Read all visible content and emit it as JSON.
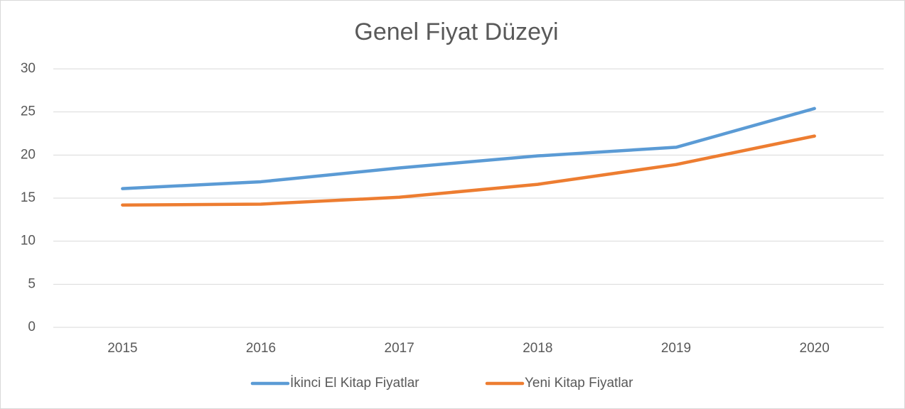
{
  "chart_data": {
    "type": "line",
    "title": "Genel Fiyat Düzeyi",
    "categories": [
      "2015",
      "2016",
      "2017",
      "2018",
      "2019",
      "2020"
    ],
    "series": [
      {
        "name": "İkinci El Kitap Fiyatlar",
        "color": "#5b9bd5",
        "values": [
          16.1,
          16.9,
          18.5,
          19.9,
          20.9,
          25.4
        ]
      },
      {
        "name": "Yeni Kitap Fiyatlar",
        "color": "#ed7d31",
        "values": [
          14.2,
          14.3,
          15.1,
          16.6,
          18.9,
          22.2
        ]
      }
    ],
    "ylim": [
      0,
      30
    ],
    "yticks": [
      0,
      5,
      10,
      15,
      20,
      25,
      30
    ],
    "grid": true,
    "legend": "bottom"
  }
}
